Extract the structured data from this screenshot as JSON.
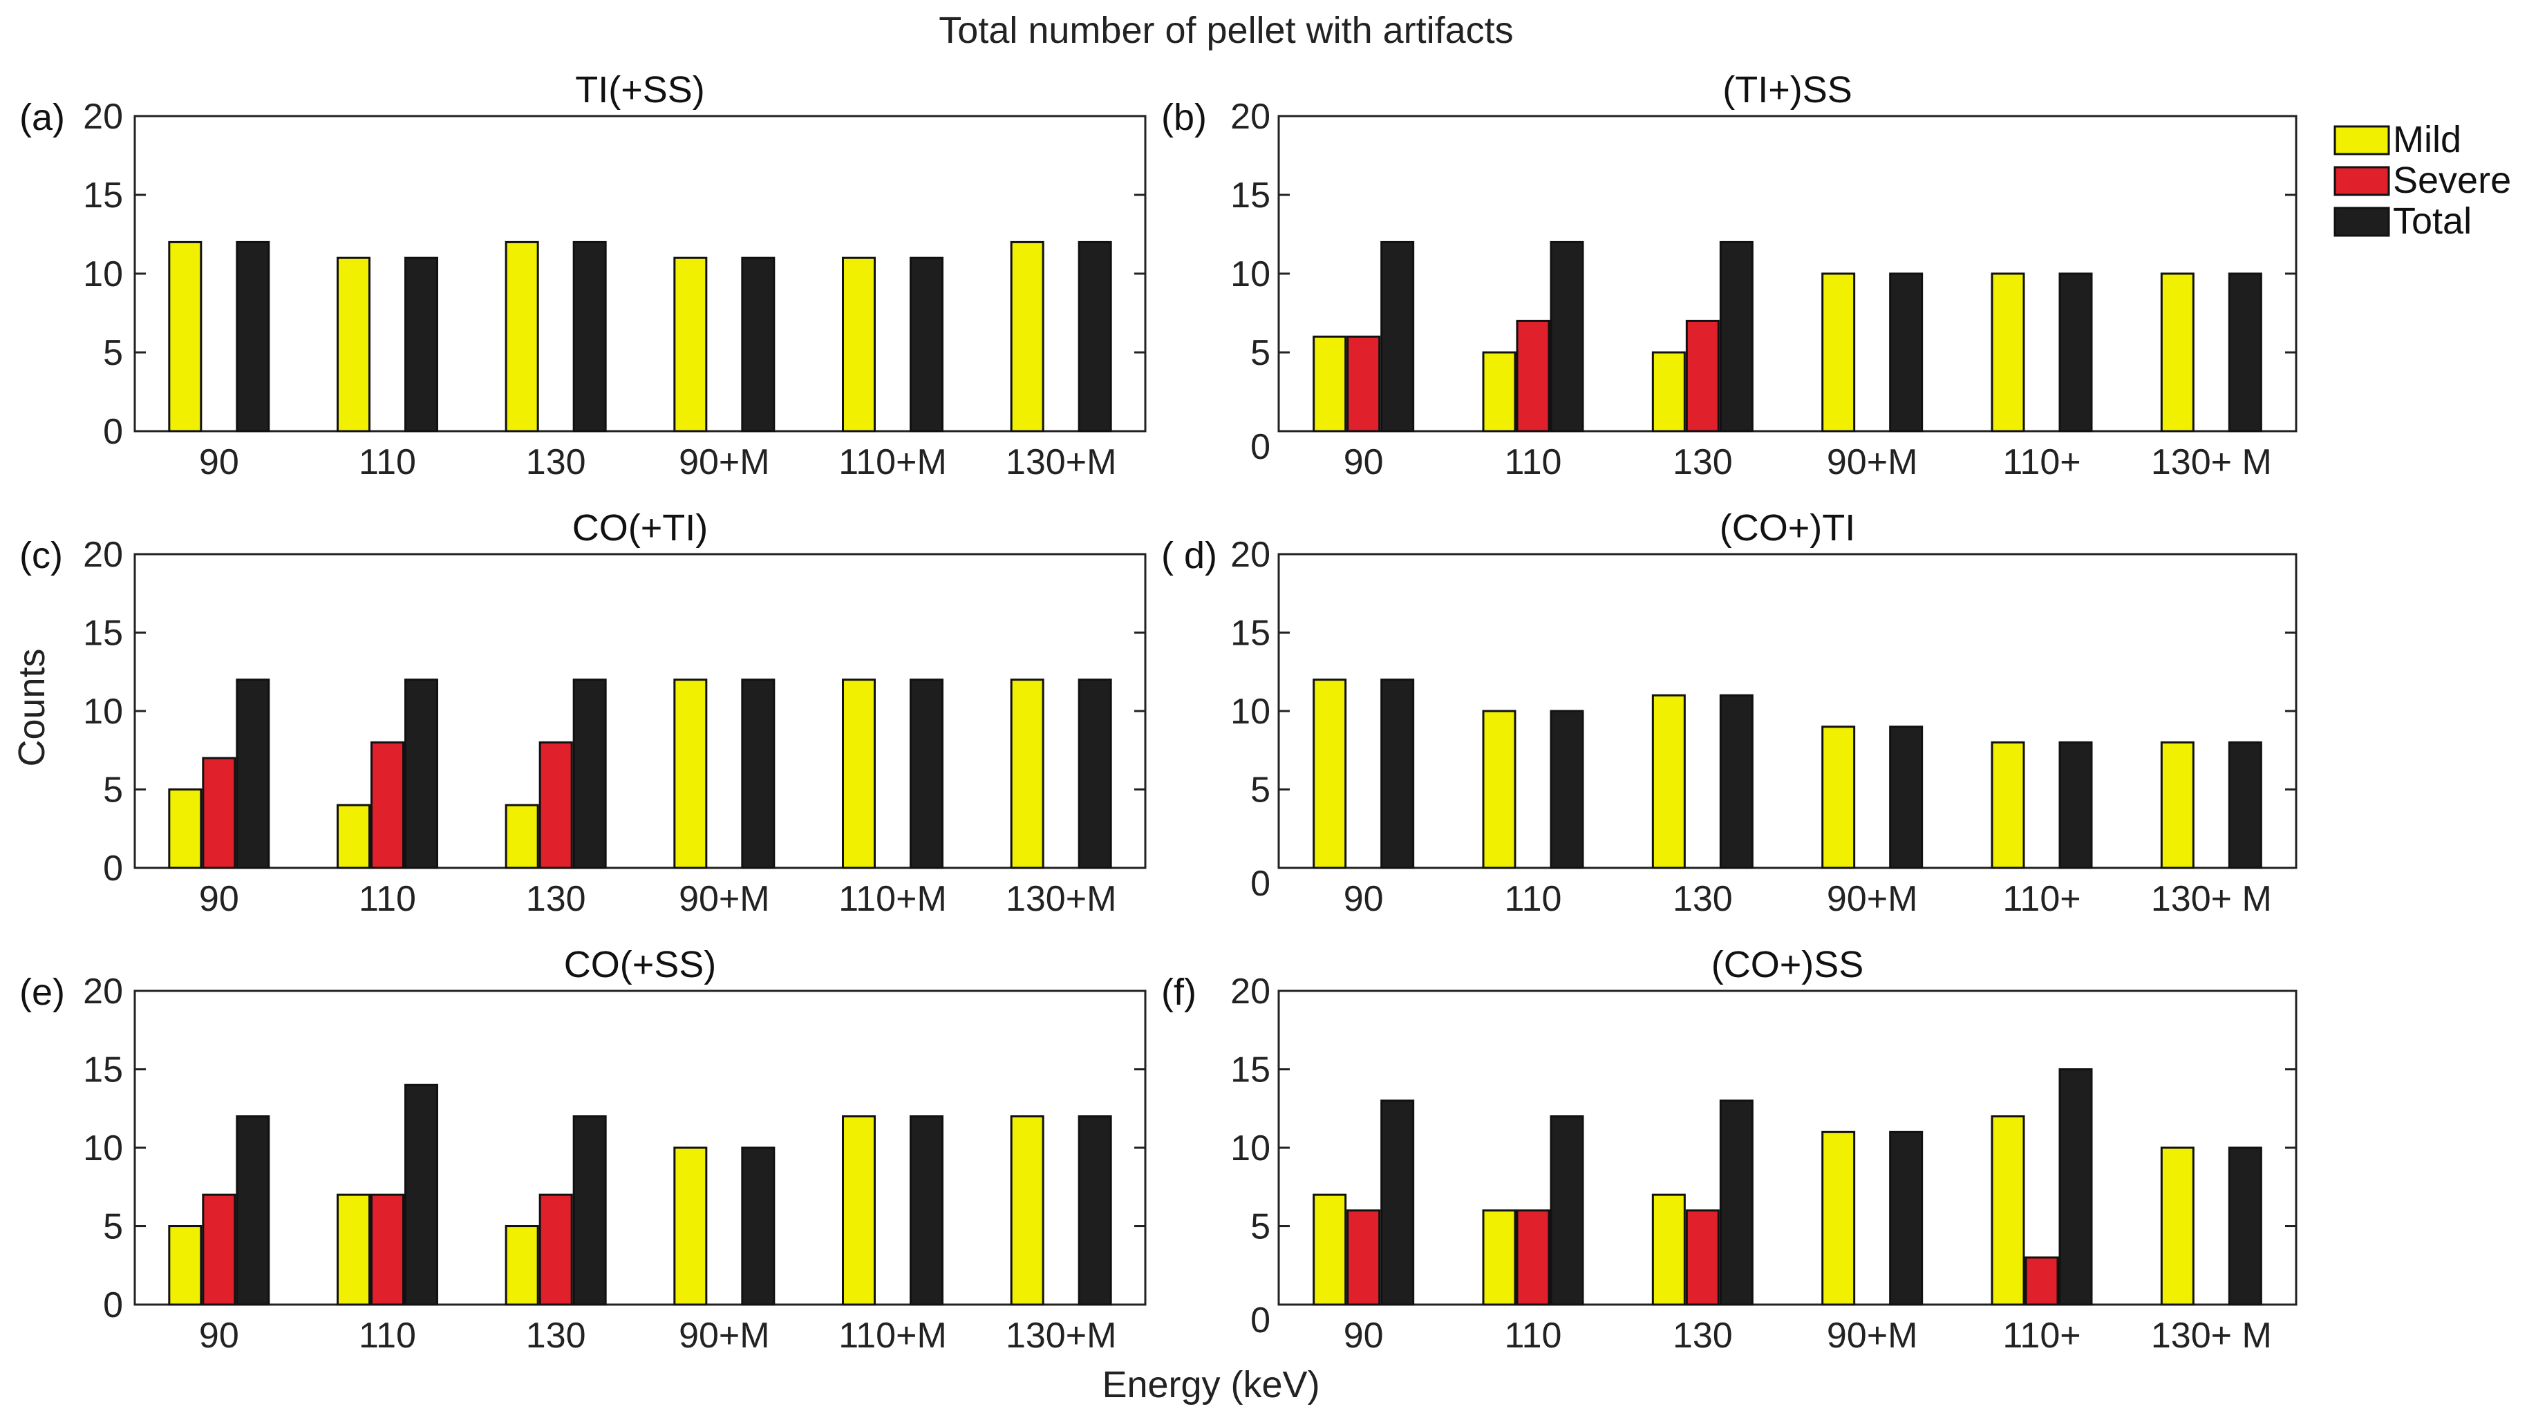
{
  "figure_title": "Total number of pellet with artifacts",
  "colors": {
    "Mild": "#f0f000",
    "Severe": "#e0202a",
    "Total": "#1e1e1e"
  },
  "legend": [
    "Mild",
    "Severe",
    "Total"
  ],
  "shared_axes": {
    "ylabel": "Counts",
    "xlabel": "Energy (keV)"
  },
  "chart_data": [
    {
      "type": "bar",
      "panel_label": "(a)",
      "title": "TI(+SS)",
      "categories": [
        "90",
        "110",
        "130",
        "90+M",
        "110+M",
        "130+M"
      ],
      "ylim": [
        0,
        20
      ],
      "yticks": [
        "0",
        "5",
        "10",
        "15",
        "20"
      ],
      "legend": null,
      "series": [
        {
          "name": "Mild",
          "values": [
            12,
            11,
            12,
            11,
            11,
            12
          ]
        },
        {
          "name": "Severe",
          "values": [
            0,
            0,
            0,
            0,
            0,
            0
          ]
        },
        {
          "name": "Total",
          "values": [
            12,
            11,
            12,
            11,
            11,
            12
          ]
        }
      ]
    },
    {
      "type": "bar",
      "panel_label": "(b)",
      "title": "(TI+)SS",
      "categories": [
        "90",
        "110",
        "130",
        "90+M",
        "110+",
        "130+ M"
      ],
      "ylim": [
        0,
        20
      ],
      "yticks": [
        "0",
        "5",
        "10",
        "15",
        "20"
      ],
      "legend": "outside-right",
      "series": [
        {
          "name": "Mild",
          "values": [
            6,
            5,
            5,
            10,
            10,
            10
          ]
        },
        {
          "name": "Severe",
          "values": [
            6,
            7,
            7,
            0,
            0,
            0
          ]
        },
        {
          "name": "Total",
          "values": [
            12,
            12,
            12,
            10,
            10,
            10
          ]
        }
      ]
    },
    {
      "type": "bar",
      "panel_label": "(c)",
      "title": "CO(+TI)",
      "categories": [
        "90",
        "110",
        "130",
        "90+M",
        "110+M",
        "130+M"
      ],
      "ylim": [
        0,
        20
      ],
      "yticks": [
        "0",
        "5",
        "10",
        "15",
        "20"
      ],
      "legend": null,
      "series": [
        {
          "name": "Mild",
          "values": [
            5,
            4,
            4,
            12,
            12,
            12
          ]
        },
        {
          "name": "Severe",
          "values": [
            7,
            8,
            8,
            0,
            0,
            0
          ]
        },
        {
          "name": "Total",
          "values": [
            12,
            12,
            12,
            12,
            12,
            12
          ]
        }
      ]
    },
    {
      "type": "bar",
      "panel_label": "( d)",
      "title": "(CO+)TI",
      "categories": [
        "90",
        "110",
        "130",
        "90+M",
        "110+",
        "130+ M"
      ],
      "ylim": [
        0,
        20
      ],
      "yticks": [
        "0",
        "5",
        "10",
        "15",
        "20"
      ],
      "legend": null,
      "series": [
        {
          "name": "Mild",
          "values": [
            12,
            10,
            11,
            9,
            8,
            8
          ]
        },
        {
          "name": "Severe",
          "values": [
            0,
            0,
            0,
            0,
            0,
            0
          ]
        },
        {
          "name": "Total",
          "values": [
            12,
            10,
            11,
            9,
            8,
            8
          ]
        }
      ]
    },
    {
      "type": "bar",
      "panel_label": "(e)",
      "title": "CO(+SS)",
      "categories": [
        "90",
        "110",
        "130",
        "90+M",
        "110+M",
        "130+M"
      ],
      "ylim": [
        0,
        20
      ],
      "yticks": [
        "0",
        "5",
        "10",
        "15",
        "20"
      ],
      "legend": null,
      "series": [
        {
          "name": "Mild",
          "values": [
            5,
            7,
            5,
            10,
            12,
            12
          ]
        },
        {
          "name": "Severe",
          "values": [
            7,
            7,
            7,
            0,
            0,
            0
          ]
        },
        {
          "name": "Total",
          "values": [
            12,
            14,
            12,
            10,
            12,
            12
          ]
        }
      ]
    },
    {
      "type": "bar",
      "panel_label": "(f)",
      "title": "(CO+)SS",
      "categories": [
        "90",
        "110",
        "130",
        "90+M",
        "110+",
        "130+ M"
      ],
      "ylim": [
        0,
        20
      ],
      "yticks": [
        "0",
        "5",
        "10",
        "15",
        "20"
      ],
      "legend": null,
      "series": [
        {
          "name": "Mild",
          "values": [
            7,
            6,
            7,
            11,
            12,
            10
          ]
        },
        {
          "name": "Severe",
          "values": [
            6,
            6,
            6,
            0,
            3,
            0
          ]
        },
        {
          "name": "Total",
          "values": [
            13,
            12,
            13,
            11,
            15,
            10
          ]
        }
      ]
    }
  ]
}
